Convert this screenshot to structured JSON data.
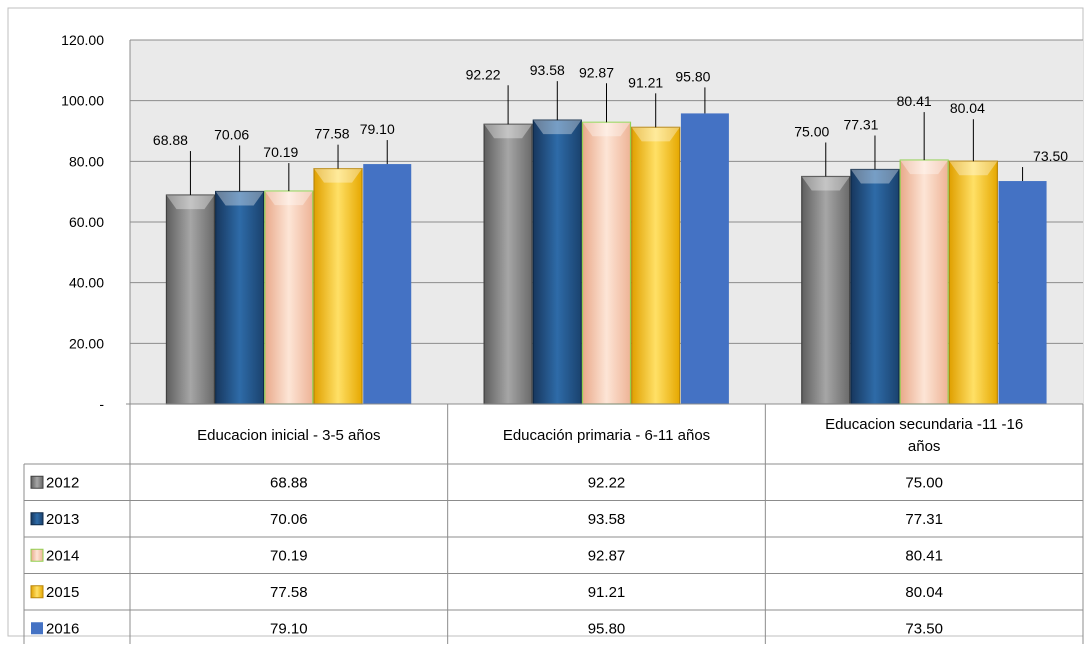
{
  "chart_data": {
    "type": "bar",
    "title": "",
    "xlabel": "",
    "ylabel": "",
    "ylim": [
      0,
      120
    ],
    "yticks": [
      "-",
      "20.00",
      "40.00",
      "60.00",
      "80.00",
      "100.00",
      "120.00"
    ],
    "grid": true,
    "legend": "data-table-below",
    "categories": [
      [
        "Educacion inicial - 3-5 años"
      ],
      [
        "Educación primaria - 6-11 años"
      ],
      [
        "Educacion secundaria -11 -16",
        "años"
      ]
    ],
    "series": [
      {
        "name": "2012",
        "values": [
          68.88,
          92.22,
          75.0
        ],
        "labels": [
          "68.88",
          "92.22",
          "75.00"
        ],
        "color": "#808080"
      },
      {
        "name": "2013",
        "values": [
          70.06,
          93.58,
          77.31
        ],
        "labels": [
          "70.06",
          "93.58",
          "77.31"
        ],
        "color": "#1f4e79"
      },
      {
        "name": "2014",
        "values": [
          70.19,
          92.87,
          80.41
        ],
        "labels": [
          "70.19",
          "92.87",
          "80.41"
        ],
        "color": "#f8cbad"
      },
      {
        "name": "2015",
        "values": [
          77.58,
          91.21,
          80.04
        ],
        "labels": [
          "77.58",
          "91.21",
          "80.04"
        ],
        "color": "#ffc000"
      },
      {
        "name": "2016",
        "values": [
          79.1,
          95.8,
          73.5
        ],
        "labels": [
          "79.10",
          "95.80",
          "73.50"
        ],
        "color": "#4472c4"
      }
    ]
  }
}
